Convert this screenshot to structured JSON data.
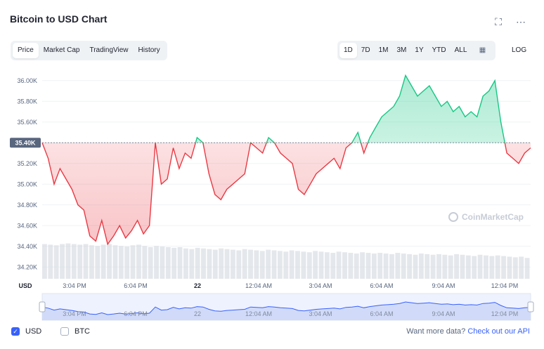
{
  "header": {
    "title": "Bitcoin to USD Chart"
  },
  "tabs": [
    "Price",
    "Market Cap",
    "TradingView",
    "History"
  ],
  "active_tab": "Price",
  "ranges": [
    "1D",
    "7D",
    "1M",
    "3M",
    "1Y",
    "YTD",
    "ALL"
  ],
  "active_range": "1D",
  "log_label": "LOG",
  "icons": {
    "fullscreen": "fullscreen-icon",
    "more": "more-icon",
    "calendar": "calendar-icon"
  },
  "watermark": "CoinMarketCap",
  "legend": {
    "usd": "USD",
    "btc": "BTC"
  },
  "api": {
    "text": "Want more data?",
    "link": "Check out our API"
  },
  "colors": {
    "up": "#16c784",
    "down": "#ea3943",
    "volume": "#d9dde3",
    "navigator": "#3861fb"
  },
  "chart_data": {
    "type": "line",
    "ylabel": "USD",
    "yticks": [
      "36.00K",
      "35.80K",
      "35.60K",
      "35.40K",
      "35.20K",
      "35.00K",
      "34.80K",
      "34.60K",
      "34.40K",
      "34.20K"
    ],
    "ylim": [
      34100,
      36100
    ],
    "baseline": 35400,
    "baseline_label": "35.40K",
    "xticks": [
      "3:04 PM",
      "6:04 PM",
      "22",
      "12:04 AM",
      "3:04 AM",
      "6:04 AM",
      "9:04 AM",
      "12:04 PM"
    ],
    "series": [
      {
        "values": [
          35400,
          35250,
          35000,
          35150,
          35050,
          34950,
          34800,
          34750,
          34500,
          34450,
          34650,
          34420,
          34500,
          34600,
          34480,
          34550,
          34650,
          34520,
          34600,
          35400,
          35000,
          35050,
          35350,
          35150,
          35300,
          35250,
          35450,
          35400,
          35100,
          34900,
          34850,
          34950,
          35000,
          35050,
          35100,
          35400,
          35350,
          35300,
          35450,
          35400,
          35300,
          35250,
          35200,
          34950,
          34900,
          35000,
          35100,
          35150,
          35200,
          35250,
          35150,
          35350,
          35400,
          35500,
          35300,
          35450,
          35550,
          35650,
          35700,
          35750,
          35850,
          36050,
          35950,
          35850,
          35900,
          35950,
          35850,
          35750,
          35800,
          35700,
          35750,
          35650,
          35700,
          35650,
          35850,
          35900,
          36000,
          35600,
          35300,
          35250,
          35200,
          35300,
          35350
        ]
      }
    ],
    "volume_note": "volume bars",
    "volume": [
      0.55,
      0.54,
      0.53,
      0.55,
      0.56,
      0.55,
      0.54,
      0.55,
      0.53,
      0.52,
      0.54,
      0.55,
      0.53,
      0.52,
      0.51,
      0.53,
      0.54,
      0.52,
      0.5,
      0.52,
      0.51,
      0.5,
      0.49,
      0.5,
      0.48,
      0.47,
      0.49,
      0.48,
      0.47,
      0.46,
      0.48,
      0.47,
      0.46,
      0.45,
      0.47,
      0.46,
      0.45,
      0.44,
      0.46,
      0.45,
      0.44,
      0.43,
      0.45,
      0.44,
      0.43,
      0.42,
      0.44,
      0.43,
      0.42,
      0.41,
      0.43,
      0.42,
      0.41,
      0.4,
      0.42,
      0.41,
      0.4,
      0.41,
      0.4,
      0.39,
      0.41,
      0.4,
      0.39,
      0.38,
      0.4,
      0.39,
      0.38,
      0.39,
      0.38,
      0.37,
      0.39,
      0.38,
      0.37,
      0.36,
      0.38,
      0.37,
      0.36,
      0.37,
      0.36,
      0.35,
      0.34,
      0.35,
      0.33
    ]
  }
}
